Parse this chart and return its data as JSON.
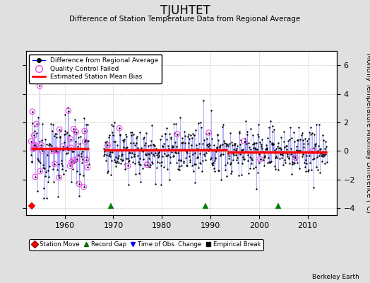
{
  "title": "TJUHTET",
  "subtitle": "Difference of Station Temperature Data from Regional Average",
  "ylabel": "Monthly Temperature Anomaly Difference (°C)",
  "xlabel_ticks": [
    1960,
    1970,
    1980,
    1990,
    2000,
    2010
  ],
  "ylim": [
    -4.5,
    7.0
  ],
  "yticks": [
    -4,
    -2,
    0,
    2,
    4,
    6
  ],
  "xlim": [
    1952,
    2016
  ],
  "background_color": "#e0e0e0",
  "plot_bg_color": "#ffffff",
  "credit": "Berkeley Earth",
  "seed": 12345
}
